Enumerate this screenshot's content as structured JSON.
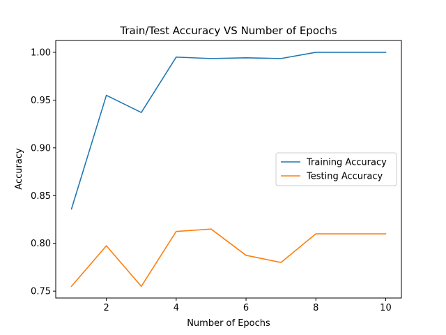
{
  "chart_data": {
    "type": "line",
    "title": "Train/Test Accuracy VS Number of Epochs",
    "xlabel": "Number of Epochs",
    "ylabel": "Accuracy",
    "xlim": [
      0.55,
      10.45
    ],
    "ylim": [
      0.7428,
      1.0124
    ],
    "xticks": [
      2,
      4,
      6,
      8,
      10
    ],
    "yticks": [
      0.75,
      0.8,
      0.85,
      0.9,
      0.95,
      1.0
    ],
    "ytick_labels": [
      "0.75",
      "0.80",
      "0.85",
      "0.90",
      "0.95",
      "1.00"
    ],
    "grid": false,
    "legend_position": "center-right",
    "x": [
      1,
      2,
      3,
      4,
      5,
      6,
      7,
      8,
      9,
      10
    ],
    "series": [
      {
        "name": "Training Accuracy",
        "color": "#1f77b4",
        "values": [
          0.836,
          0.955,
          0.937,
          0.995,
          0.9935,
          0.9943,
          0.9935,
          1.0,
          1.0,
          1.0
        ]
      },
      {
        "name": "Testing Accuracy",
        "color": "#ff7f0e",
        "values": [
          0.755,
          0.7975,
          0.755,
          0.8125,
          0.815,
          0.7875,
          0.78,
          0.81,
          0.81,
          0.81
        ]
      }
    ]
  }
}
